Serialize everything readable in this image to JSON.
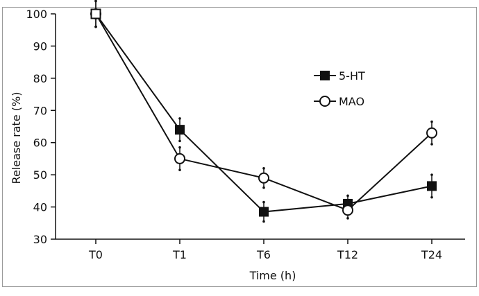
{
  "chart_data": {
    "type": "line",
    "title": "",
    "xlabel": "Time (h)",
    "ylabel": "Release rate (%)",
    "categories": [
      "T0",
      "T1",
      "T6",
      "T12",
      "T24"
    ],
    "ylim": [
      30,
      100
    ],
    "yticks": [
      30,
      40,
      50,
      60,
      70,
      80,
      90,
      100
    ],
    "legend_position": "right",
    "series": [
      {
        "name": "5-HT",
        "marker": "filled-square",
        "color": "#111111",
        "values": [
          100,
          64,
          38.5,
          41,
          46.5
        ],
        "errors": [
          4,
          3.5,
          3,
          2.5,
          3.5
        ]
      },
      {
        "name": "MAO",
        "marker": "open-circle",
        "color": "#111111",
        "values": [
          100,
          55,
          49,
          39,
          63
        ],
        "errors": [
          4,
          3.5,
          3,
          2.5,
          3.5
        ]
      }
    ]
  }
}
